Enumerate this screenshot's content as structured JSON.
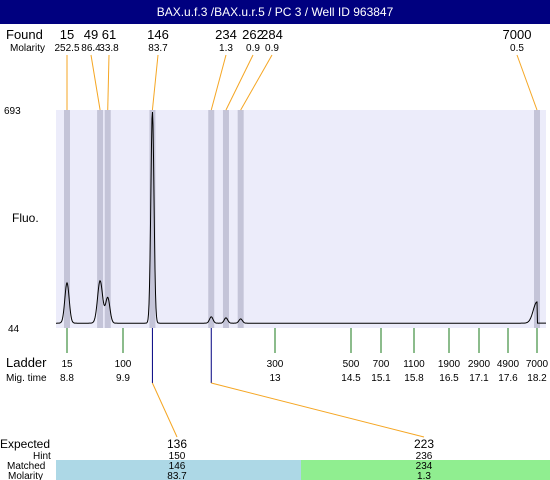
{
  "header": {
    "title": "BAX.u.f.3 /BAX.u.r.5 / PC 3 / Well ID 963847"
  },
  "labels": {
    "found": "Found",
    "molarity": "Molarity",
    "fluo": "Fluo.",
    "ladder": "Ladder",
    "mig_time": "Mig. time",
    "expected": "Expected",
    "hint": "Hint",
    "matched": "Matched",
    "molarity_bottom": "Molarity"
  },
  "colors": {
    "plot_bg": "#ececfa",
    "band": "#c4c4d8",
    "leader": "#f5a623",
    "ladder_tick": "#1a7a1a",
    "expected_tick": "#000080",
    "match_blue": "#add8e6",
    "match_green": "#90ee90"
  },
  "chart_data": {
    "type": "line",
    "y_axis": {
      "min_label": "44",
      "max_label": "693",
      "label": "Fluo."
    },
    "found_peaks": [
      {
        "size": "15",
        "molarity": "252.5",
        "mig_time": 8.8
      },
      {
        "size": "49",
        "molarity": "86.4",
        "mig_time": 9.45
      },
      {
        "size": "61",
        "molarity": "33.8",
        "mig_time": 9.6
      },
      {
        "size": "146",
        "molarity": "83.7",
        "mig_time": 10.5
      },
      {
        "size": "234",
        "molarity": "1.3",
        "mig_time": 11.7
      },
      {
        "size": "262",
        "molarity": "0.9",
        "mig_time": 12.0
      },
      {
        "size": "284",
        "molarity": "0.9",
        "mig_time": 12.3
      },
      {
        "size": "7000",
        "molarity": "0.5",
        "mig_time": 18.2
      }
    ],
    "ladder": [
      {
        "size": "15",
        "mig_time": "8.8"
      },
      {
        "size": "100",
        "mig_time": "9.9"
      },
      {
        "size": "300",
        "mig_time": "13"
      },
      {
        "size": "500",
        "mig_time": "14.5"
      },
      {
        "size": "700",
        "mig_time": "15.1"
      },
      {
        "size": "1100",
        "mig_time": "15.8"
      },
      {
        "size": "1900",
        "mig_time": "16.5"
      },
      {
        "size": "2900",
        "mig_time": "17.1"
      },
      {
        "size": "4900",
        "mig_time": "17.6"
      },
      {
        "size": "7000",
        "mig_time": "18.2"
      }
    ],
    "expected": [
      {
        "size": "136",
        "hint": "150",
        "matched": "146",
        "molarity": "83.7",
        "found_index": 3
      },
      {
        "size": "223",
        "hint": "236",
        "matched": "234",
        "molarity": "1.3",
        "found_index": 4
      }
    ],
    "trace": {
      "baseline": 0.04,
      "peaks": [
        {
          "t": 8.8,
          "h": 0.19,
          "w": 0.06
        },
        {
          "t": 9.45,
          "h": 0.2,
          "w": 0.07
        },
        {
          "t": 9.6,
          "h": 0.12,
          "w": 0.06
        },
        {
          "t": 10.5,
          "h": 1.0,
          "w": 0.045
        },
        {
          "t": 11.7,
          "h": 0.03,
          "w": 0.05
        },
        {
          "t": 12.0,
          "h": 0.025,
          "w": 0.05
        },
        {
          "t": 12.3,
          "h": 0.02,
          "w": 0.05
        },
        {
          "t": 18.2,
          "h": 0.1,
          "w": 0.11
        }
      ]
    }
  }
}
